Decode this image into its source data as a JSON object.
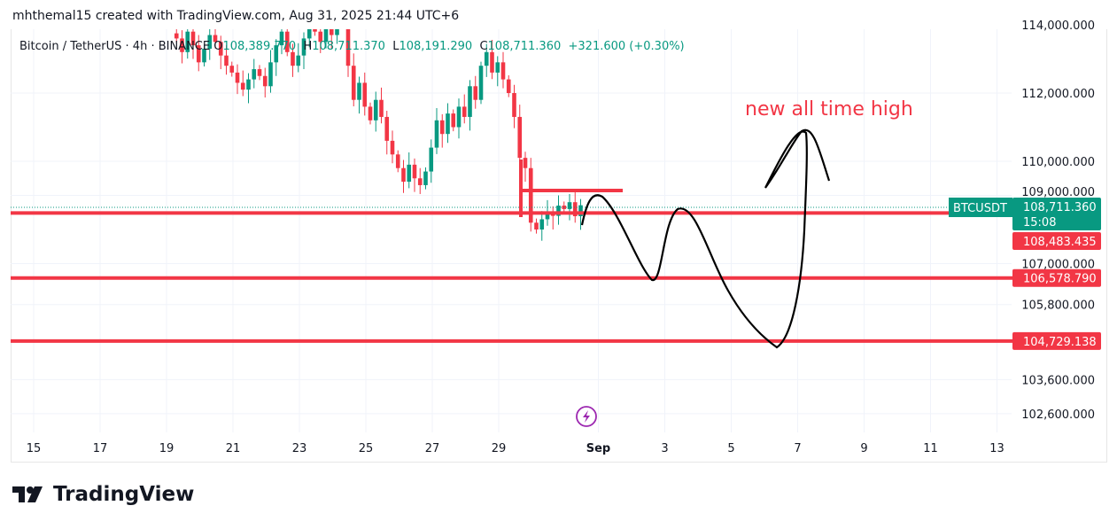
{
  "credit": "mhthemal15 created with TradingView.com, Aug 31, 2025 21:44 UTC+6",
  "legend": {
    "symbol": "Bitcoin / TetherUS · 4h · BINANCE",
    "o_label": "O",
    "o": "108,389.770",
    "h_label": "H",
    "h": "108,711.370",
    "l_label": "L",
    "l": "108,191.290",
    "c_label": "C",
    "c": "108,711.360",
    "change": "+321.600 (+0.30%)"
  },
  "annotation": "new all time high",
  "ticker_label": "BTCUSDT",
  "last_price": "108,711.360",
  "countdown": "15:08",
  "levels": [
    {
      "label": "108,483.435",
      "value": 108483.435
    },
    {
      "label": "106,578.790",
      "value": 106578.79
    },
    {
      "label": "104,729.138",
      "value": 104729.138
    }
  ],
  "logo": "TradingView",
  "colors": {
    "up": "#089981",
    "down": "#f23645",
    "drawing": "#000000"
  },
  "chart_data": {
    "type": "candlestick",
    "interval": "4h",
    "first_candle_day": 19.3,
    "closes": [
      113600,
      113200,
      113800,
      113400,
      112900,
      113300,
      113700,
      113500,
      113100,
      112800,
      112600,
      112300,
      112100,
      112400,
      112700,
      112500,
      112200,
      112900,
      113400,
      113800,
      113200,
      112800,
      113100,
      113600,
      114000,
      113800,
      113500,
      114100,
      113700,
      114200,
      114000,
      112800,
      111800,
      112300,
      111600,
      111200,
      111800,
      111300,
      110600,
      110200,
      109800,
      109400,
      109900,
      109500,
      109300,
      109700,
      110400,
      111200,
      110800,
      111400,
      111000,
      111600,
      111300,
      112200,
      111800,
      112800,
      113200,
      112600,
      112900,
      112400,
      112000,
      111300,
      110100,
      109800,
      108200,
      108000,
      108300,
      108500,
      108400,
      108700,
      108600,
      108800,
      108389.77,
      108711.36
    ],
    "y_ticks": [
      {
        "v": 114000,
        "label": "114,000.000"
      },
      {
        "v": 112000,
        "label": "112,000.000"
      },
      {
        "v": 110000,
        "label": "110,000.000"
      },
      {
        "v": 109000,
        "label": "109,000.000"
      },
      {
        "v": 107000,
        "label": "107,000.000"
      },
      {
        "v": 105800,
        "label": "105,800.000"
      },
      {
        "v": 103600,
        "label": "103,600.000"
      },
      {
        "v": 102600,
        "label": "102,600.000"
      }
    ],
    "x_ticks": [
      {
        "d": 15,
        "label": "15"
      },
      {
        "d": 17,
        "label": "17"
      },
      {
        "d": 19,
        "label": "19"
      },
      {
        "d": 21,
        "label": "21"
      },
      {
        "d": 23,
        "label": "23"
      },
      {
        "d": 25,
        "label": "25"
      },
      {
        "d": 27,
        "label": "27"
      },
      {
        "d": 29,
        "label": "29"
      },
      {
        "d": 32,
        "label": "Sep"
      },
      {
        "d": 34,
        "label": "3"
      },
      {
        "d": 36,
        "label": "5"
      },
      {
        "d": 38,
        "label": "7"
      },
      {
        "d": 40,
        "label": "9"
      },
      {
        "d": 42,
        "label": "11"
      },
      {
        "d": 44,
        "label": "13"
      }
    ]
  }
}
